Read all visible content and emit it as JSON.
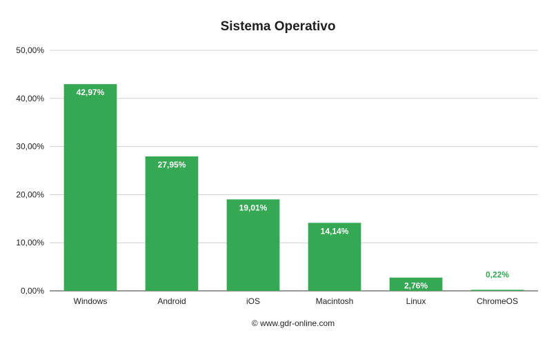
{
  "chart_data": {
    "type": "bar",
    "title": "Sistema Operativo",
    "categories": [
      "Windows",
      "Android",
      "iOS",
      "Macintosh",
      "Linux",
      "ChromeOS"
    ],
    "values": [
      42.97,
      27.95,
      19.01,
      14.14,
      2.76,
      0.22
    ],
    "data_labels": [
      "42,97%",
      "27,95%",
      "19,01%",
      "14,14%",
      "2,76%",
      "0,22%"
    ],
    "yticks": [
      "0,00%",
      "10,00%",
      "20,00%",
      "30,00%",
      "40,00%",
      "50,00%"
    ],
    "ylim": [
      0,
      50
    ],
    "grid": true,
    "legend": "none",
    "bar_color": "#34a853",
    "inside_label_color": "#ffffff",
    "outside_label_color": "#34a853"
  },
  "footer": "© www.gdr-online.com"
}
